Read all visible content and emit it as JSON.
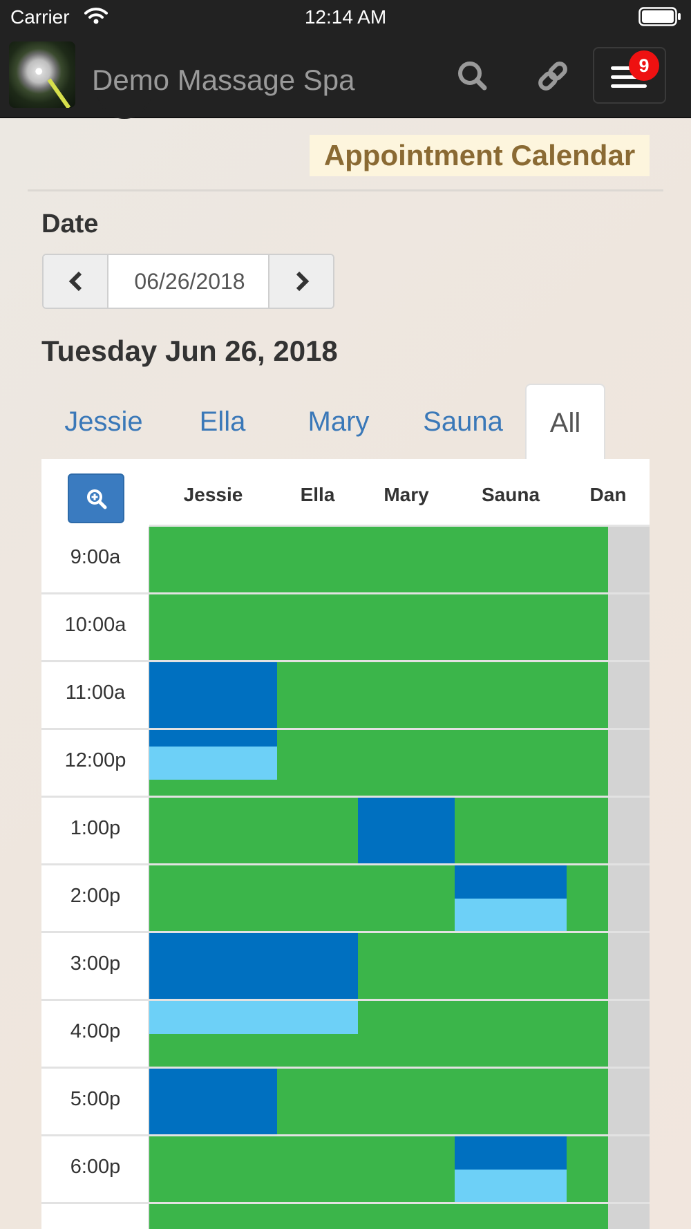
{
  "status_bar": {
    "carrier": "Carrier",
    "time": "12:14 AM"
  },
  "navbar": {
    "app_title": "Demo Massage Spa",
    "menu_badge": "9"
  },
  "page": {
    "title": "Appointment Calendar",
    "date_label": "Date",
    "date_value": "06/26/2018",
    "day_heading": "Tuesday Jun 26, 2018"
  },
  "tabs": [
    {
      "label": "Jessie"
    },
    {
      "label": "Ella"
    },
    {
      "label": "Mary"
    },
    {
      "label": "Sauna"
    },
    {
      "label": "All"
    }
  ],
  "active_tab": "All",
  "calendar": {
    "columns": [
      "Jessie",
      "Ella",
      "Mary",
      "Sauna",
      "Dan"
    ],
    "time_slots": [
      "9:00a",
      "10:00a",
      "11:00a",
      "12:00p",
      "1:00p",
      "2:00p",
      "3:00p",
      "4:00p",
      "5:00p",
      "6:00p"
    ],
    "colors": {
      "available": "#3bb54a",
      "booked": "#0070c0",
      "buffer": "#6dd0f7",
      "unavailable": "#d3d3d3"
    }
  }
}
